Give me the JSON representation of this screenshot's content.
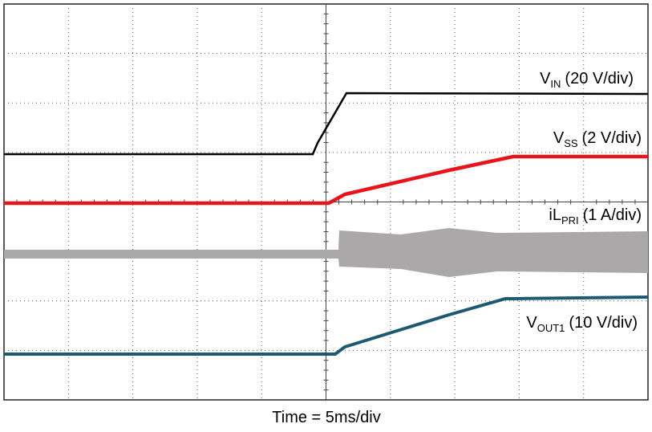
{
  "traces": [
    {
      "base": "V",
      "sub": "IN",
      "suffix": "(20 V/div)"
    },
    {
      "base": "V",
      "sub": "SS",
      "suffix": "(2 V/div)"
    },
    {
      "base": "iL",
      "sub": "PRI",
      "suffix": "(1 A/div)"
    },
    {
      "base": "V",
      "sub": "OUT1",
      "suffix": "(10 V/div)"
    }
  ],
  "x_label": "Time = 5ms/div"
}
